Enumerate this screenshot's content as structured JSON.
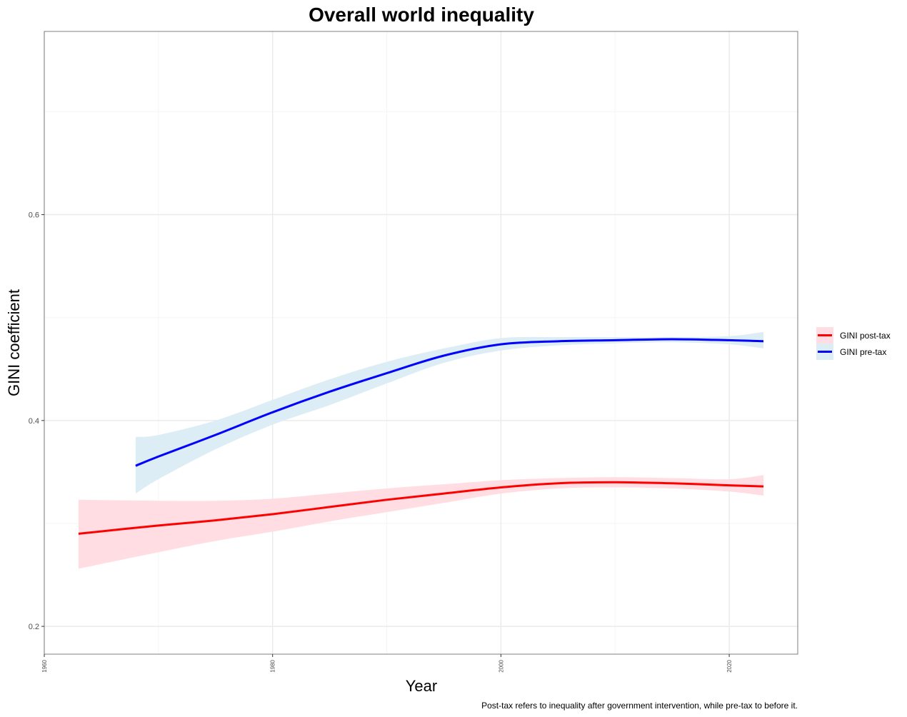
{
  "chart_data": {
    "type": "line",
    "title": "Overall world inequality",
    "xlabel": "Year",
    "ylabel": "GINI coefficient",
    "caption": "Post-tax refers to inequality after government intervention, while pre-tax to before it.",
    "xlim": [
      1960,
      2026
    ],
    "ylim": [
      0.173,
      0.778
    ],
    "x_ticks": [
      1960,
      1980,
      2000,
      2020
    ],
    "x_tick_labels": [
      "1960",
      "1980",
      "2000",
      "2020"
    ],
    "x_minor": [
      1970,
      1990,
      2010
    ],
    "y_ticks": [
      0.2,
      0.4,
      0.6
    ],
    "y_tick_labels": [
      "0.2",
      "0.4",
      "0.6"
    ],
    "y_minor": [
      0.3,
      0.5,
      0.7
    ],
    "grid": true,
    "legend_position": "right",
    "series": [
      {
        "name": "GINI post-tax",
        "color": "#ff0000",
        "band_color": "#ffdde2",
        "x": [
          1963,
          1970,
          1975,
          1980,
          1985,
          1990,
          1995,
          2000,
          2005,
          2010,
          2015,
          2020,
          2023
        ],
        "y": [
          0.29,
          0.298,
          0.303,
          0.309,
          0.316,
          0.323,
          0.329,
          0.335,
          0.339,
          0.34,
          0.339,
          0.337,
          0.336
        ],
        "lower": [
          0.256,
          0.272,
          0.283,
          0.292,
          0.302,
          0.311,
          0.32,
          0.329,
          0.334,
          0.335,
          0.334,
          0.331,
          0.327
        ],
        "upper": [
          0.323,
          0.322,
          0.322,
          0.324,
          0.329,
          0.334,
          0.338,
          0.342,
          0.344,
          0.345,
          0.344,
          0.343,
          0.347
        ]
      },
      {
        "name": "GINI pre-tax",
        "color": "#0000ff",
        "band_color": "#dcedf5",
        "x": [
          1968,
          1970,
          1975,
          1980,
          1985,
          1990,
          1995,
          2000,
          2005,
          2010,
          2015,
          2020,
          2023
        ],
        "y": [
          0.356,
          0.365,
          0.386,
          0.408,
          0.428,
          0.446,
          0.463,
          0.474,
          0.477,
          0.478,
          0.479,
          0.478,
          0.477
        ],
        "lower": [
          0.329,
          0.343,
          0.372,
          0.396,
          0.415,
          0.436,
          0.456,
          0.468,
          0.473,
          0.475,
          0.476,
          0.474,
          0.47
        ],
        "upper": [
          0.384,
          0.386,
          0.4,
          0.42,
          0.44,
          0.457,
          0.47,
          0.48,
          0.481,
          0.481,
          0.481,
          0.482,
          0.486
        ]
      }
    ]
  }
}
